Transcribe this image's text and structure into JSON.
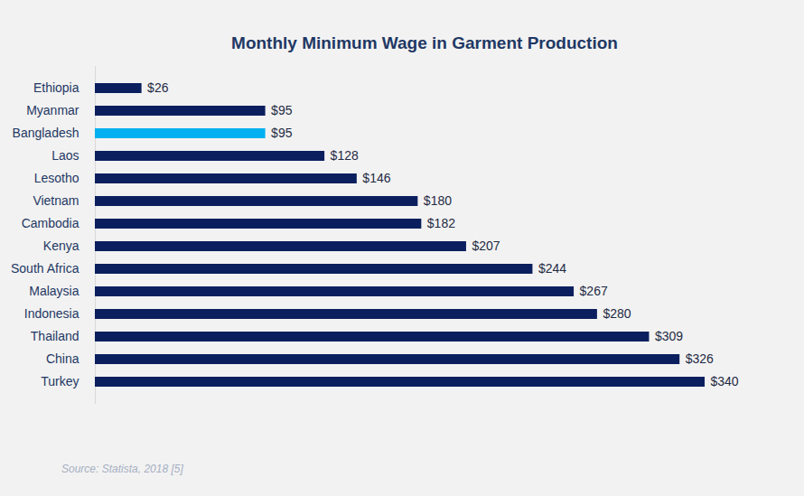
{
  "chart_data": {
    "type": "bar",
    "orientation": "horizontal",
    "title": "Monthly Minimum Wage in Garment Production",
    "caption": "Source: Statista, 2018 [5]",
    "categories": [
      "Ethiopia",
      "Myanmar",
      "Bangladesh",
      "Laos",
      "Lesotho",
      "Vietnam",
      "Cambodia",
      "Kenya",
      "South Africa",
      "Malaysia",
      "Indonesia",
      "Thailand",
      "China",
      "Turkey"
    ],
    "values": [
      26,
      95,
      95,
      128,
      146,
      180,
      182,
      207,
      244,
      267,
      280,
      309,
      326,
      340
    ],
    "value_labels": [
      "$26",
      "$95",
      "$95",
      "$128",
      "$146",
      "$180",
      "$182",
      "$207",
      "$244",
      "$267",
      "$280",
      "$309",
      "$326",
      "$340"
    ],
    "colors": [
      "#0b1f5e",
      "#0b1f5e",
      "#00b0f0",
      "#0b1f5e",
      "#0b1f5e",
      "#0b1f5e",
      "#0b1f5e",
      "#0b1f5e",
      "#0b1f5e",
      "#0b1f5e",
      "#0b1f5e",
      "#0b1f5e",
      "#0b1f5e",
      "#0b1f5e"
    ],
    "xlim": [
      0,
      340
    ],
    "data_labels": true,
    "tick_labels": "y",
    "grid": false
  }
}
